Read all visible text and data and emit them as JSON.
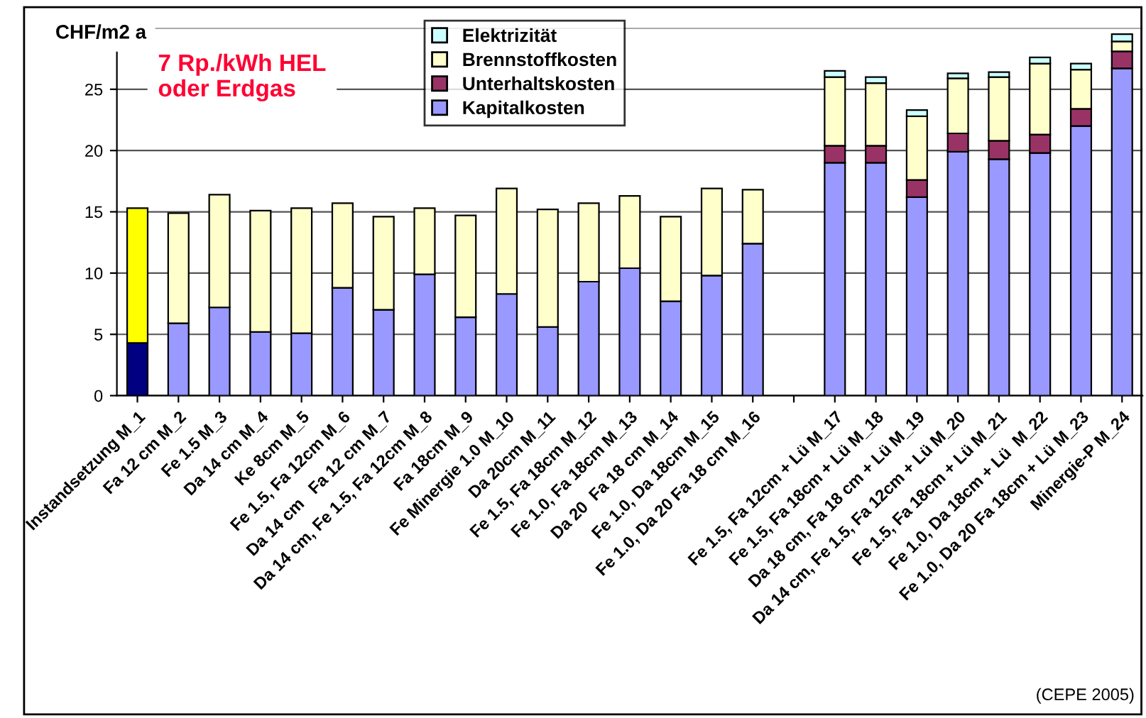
{
  "chart_data": {
    "type": "bar",
    "stacked": true,
    "ylabel": "CHF/m2 a",
    "categories": [
      "Instandsetzung M_1",
      "Fa 12 cm M_2",
      "Fe 1.5 M_3",
      "Da 14 cm M_4",
      "Ke 8cm M_5",
      "Fe 1.5, Fa 12cm M_6",
      "Da 14 cm   Fa 12 cm M_7",
      "Da 14 cm, Fe 1.5, Fa 12cm M_8",
      "Fa 18cm M_9",
      "Fe Minergie 1.0 M_10",
      "Da 20cm M_11",
      "Fe 1.5, Fa 18cm M_12",
      "Fe 1.0, Fa 18cm M_13",
      "Da 20  Fa 18 cm M_14",
      "Fe 1.0, Da 18cm M_15",
      "Fe 1.0, Da 20 Fa 18 cm M_16",
      null,
      "Fe 1.5, Fa 12cm + Lü M_17",
      "Fe 1.5, Fa 18cm + Lü M_18",
      "Da 18 cm, Fa 18 cm + Lü M_19",
      "Da 14 cm, Fe 1.5, Fa 12cm + Lü M_20",
      "Fe 1.5, Fa 18cm + Lü M_21",
      "Fe 1.0, Da 18cm + Lü  M_22",
      "Fe 1.0, Da 20 Fa 18cm + Lü M_23",
      "Minergie-P M_24"
    ],
    "series": [
      {
        "name": "Kapitalkosten",
        "color": "#9999ff",
        "colors": [
          "#000080",
          "#9999ff",
          "#9999ff",
          "#9999ff",
          "#9999ff",
          "#9999ff",
          "#9999ff",
          "#9999ff",
          "#9999ff",
          "#9999ff",
          "#9999ff",
          "#9999ff",
          "#9999ff",
          "#9999ff",
          "#9999ff",
          "#9999ff",
          "#9999ff",
          "#9999ff",
          "#9999ff",
          "#9999ff",
          "#9999ff",
          "#9999ff",
          "#9999ff",
          "#9999ff",
          "#9999ff"
        ],
        "values": [
          4.3,
          5.9,
          7.2,
          5.2,
          5.1,
          8.8,
          7.0,
          9.9,
          6.4,
          8.3,
          5.6,
          9.3,
          10.4,
          7.7,
          9.8,
          12.4,
          null,
          19.0,
          19.0,
          16.2,
          19.9,
          19.3,
          19.8,
          22.0,
          26.7
        ]
      },
      {
        "name": "Unterhaltskosten",
        "color": "#993366",
        "values": [
          null,
          null,
          null,
          null,
          null,
          null,
          null,
          null,
          null,
          null,
          null,
          null,
          null,
          null,
          null,
          null,
          null,
          1.4,
          1.4,
          1.4,
          1.5,
          1.5,
          1.5,
          1.4,
          1.4
        ]
      },
      {
        "name": "Brennstoffkosten",
        "color": "#ffffcc",
        "colors": [
          "#ffff00",
          "#ffffcc",
          "#ffffcc",
          "#ffffcc",
          "#ffffcc",
          "#ffffcc",
          "#ffffcc",
          "#ffffcc",
          "#ffffcc",
          "#ffffcc",
          "#ffffcc",
          "#ffffcc",
          "#ffffcc",
          "#ffffcc",
          "#ffffcc",
          "#ffffcc",
          "#ffffcc",
          "#ffffcc",
          "#ffffcc",
          "#ffffcc",
          "#ffffcc",
          "#ffffcc",
          "#ffffcc",
          "#ffffcc",
          "#ffffcc"
        ],
        "values": [
          11.0,
          9.0,
          9.2,
          9.9,
          10.2,
          6.9,
          7.6,
          5.4,
          8.3,
          8.6,
          9.6,
          6.4,
          5.9,
          6.9,
          7.1,
          4.4,
          null,
          5.6,
          5.1,
          5.2,
          4.5,
          5.2,
          5.8,
          3.2,
          0.8
        ]
      },
      {
        "name": "Elektrizität",
        "color": "#ccffff",
        "values": [
          null,
          null,
          null,
          null,
          null,
          null,
          null,
          null,
          null,
          null,
          null,
          null,
          null,
          null,
          null,
          null,
          null,
          0.5,
          0.5,
          0.5,
          0.4,
          0.4,
          0.5,
          0.5,
          0.6
        ]
      }
    ],
    "ylim": [
      0,
      30
    ],
    "yticks": [
      0,
      5,
      10,
      15,
      20,
      25,
      {
        "value": 30,
        "label": null
      }
    ],
    "grid": "y",
    "legend": "top",
    "annotations": [
      {
        "text": "7 Rp./kWh HEL\noder Erdgas"
      },
      "(CEPE 2005)"
    ]
  }
}
